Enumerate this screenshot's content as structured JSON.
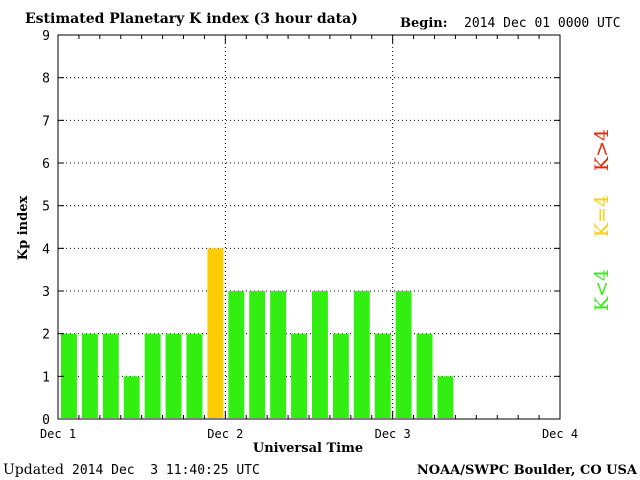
{
  "header": {
    "title": "Estimated Planetary K index (3 hour data)",
    "begin_label": "Begin:",
    "begin_value": "2014 Dec 01 0000 UTC"
  },
  "footer": {
    "updated_label": "Updated",
    "updated_value": "2014 Dec  3 11:40:25 UTC",
    "credit": "NOAA/SWPC Boulder, CO USA"
  },
  "legend": {
    "below": {
      "label": "K<4",
      "color": "#33ee11"
    },
    "equal": {
      "label": "K=4",
      "color": "#ffcc00"
    },
    "above": {
      "label": "K>4",
      "color": "#ee2200"
    }
  },
  "chart_data": {
    "type": "bar",
    "title": "Estimated Planetary K index (3 hour data)",
    "xlabel": "Universal Time",
    "ylabel": "Kp index",
    "ylim": [
      0,
      9
    ],
    "yticks": [
      0,
      1,
      2,
      3,
      4,
      5,
      6,
      7,
      8,
      9
    ],
    "xticks": [
      "Dec 1",
      "Dec 2",
      "Dec 3",
      "Dec 4"
    ],
    "bar_interval_hours": 3,
    "values": [
      2,
      2,
      2,
      1,
      2,
      2,
      2,
      4,
      3,
      3,
      3,
      2,
      3,
      2,
      3,
      2,
      3,
      2,
      1
    ],
    "grid": true,
    "colors": {
      "below": "#33ee11",
      "equal": "#ffcc00",
      "above": "#ee2200"
    }
  }
}
